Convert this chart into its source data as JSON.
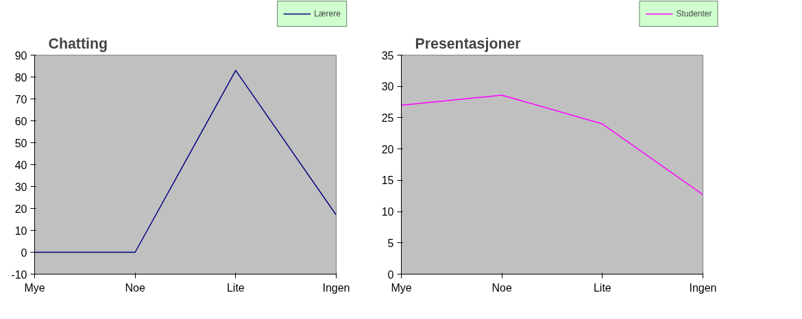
{
  "chart_data": [
    {
      "type": "line",
      "title": "Chatting",
      "categories": [
        "Mye",
        "Noe",
        "Lite",
        "Ingen"
      ],
      "series": [
        {
          "name": "Lærere",
          "color": "#000080",
          "values": [
            0,
            0,
            83,
            17
          ]
        }
      ],
      "ylim": [
        -10,
        90
      ],
      "yticks": [
        -10,
        0,
        10,
        20,
        30,
        40,
        50,
        60,
        70,
        80,
        90
      ],
      "grid": false,
      "legend": "top right",
      "marker": "none",
      "line_style": "solid"
    },
    {
      "type": "line",
      "title": "Presentasjoner",
      "categories": [
        "Mye",
        "Noe",
        "Lite",
        "Ingen"
      ],
      "series": [
        {
          "name": "Studenter",
          "color": "#ff00ff",
          "values": [
            27,
            28.6,
            24,
            12.7
          ]
        }
      ],
      "ylim": [
        0,
        35
      ],
      "yticks": [
        0,
        5,
        10,
        15,
        20,
        25,
        30,
        35
      ],
      "grid": false,
      "legend": "top right",
      "marker": "none",
      "line_style": "solid"
    }
  ]
}
